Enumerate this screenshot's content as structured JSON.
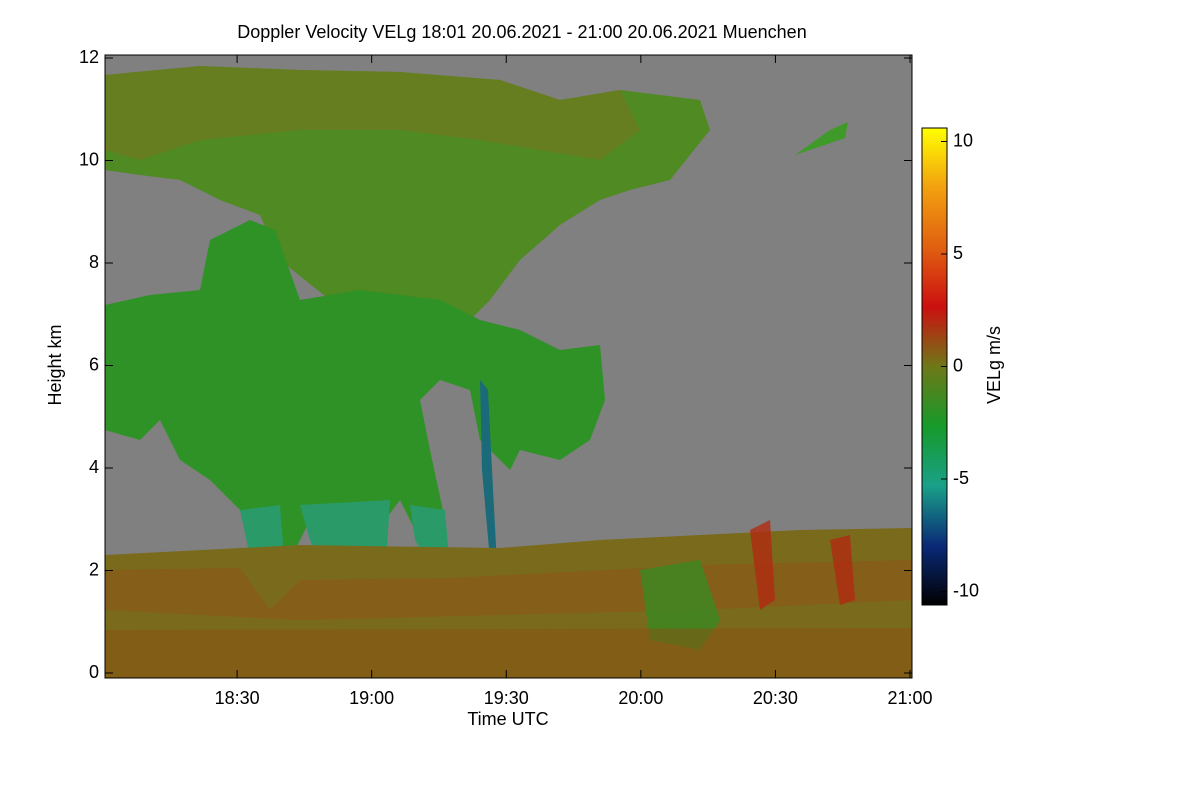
{
  "chart_data": {
    "type": "heatmap",
    "title": "Doppler Velocity VELg   18:01 20.06.2021 - 21:00 20.06.2021 Muenchen",
    "x_label": "Time UTC",
    "y_label": "Height km",
    "xlim": [
      "18:01",
      "21:00"
    ],
    "xticks": [
      "18:30",
      "19:00",
      "19:30",
      "20:00",
      "20:30",
      "21:00"
    ],
    "ylim": [
      0,
      12
    ],
    "yticks": [
      0,
      2,
      4,
      6,
      8,
      10,
      12
    ],
    "colorbar_label": "VELg m/s",
    "clim": [
      -10.6,
      10.6
    ],
    "cticks": [
      -10,
      -5,
      0,
      5,
      10
    ],
    "colormap": [
      "#000000",
      "#0a2a78",
      "#1aa088",
      "#169a2a",
      "#6e7818",
      "#cc1010",
      "#e06010",
      "#f2a010",
      "#ffff00"
    ]
  }
}
